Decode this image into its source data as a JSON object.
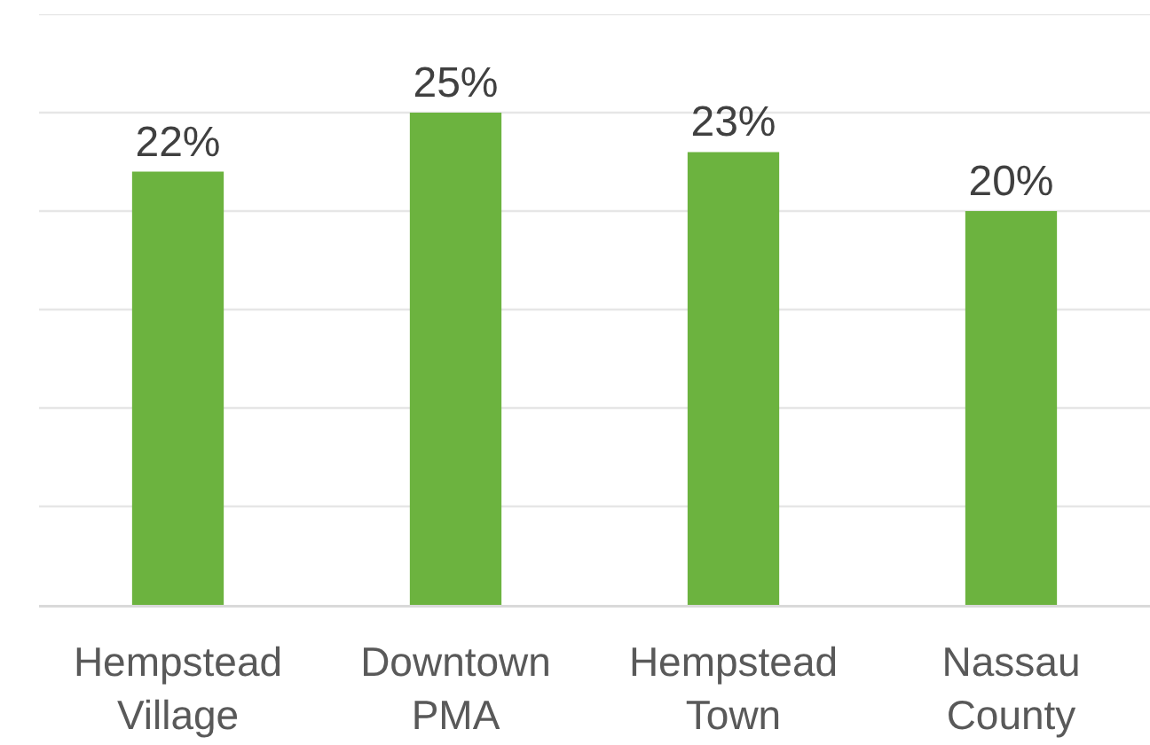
{
  "chart_data": {
    "type": "bar",
    "categories": [
      "Hempstead Village",
      "Downtown PMA",
      "Hempstead Town",
      "Nassau County"
    ],
    "values": [
      22,
      25,
      23,
      20
    ],
    "value_labels": [
      "22%",
      "25%",
      "23%",
      "20%"
    ],
    "color": "#6cb33f",
    "ylim": [
      0,
      30
    ],
    "yticks": [
      {
        "value": 0,
        "label": null
      },
      {
        "value": 5,
        "label": null
      },
      {
        "value": 10,
        "label": null
      },
      {
        "value": 15,
        "label": null
      },
      {
        "value": 20,
        "label": null
      },
      {
        "value": 25,
        "label": null
      },
      {
        "value": 30,
        "label": null
      }
    ],
    "grid": "y",
    "tick_labels": "x"
  }
}
